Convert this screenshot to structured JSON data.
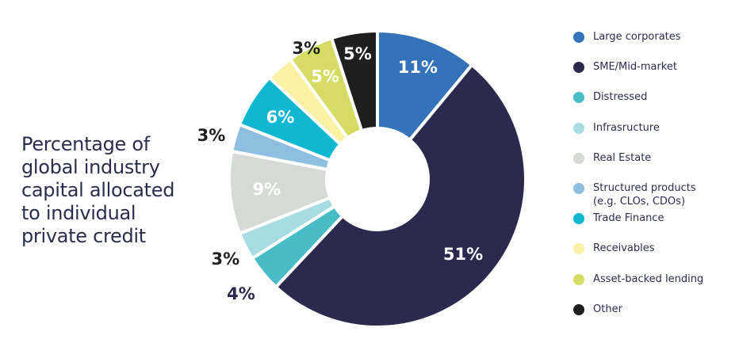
{
  "title": "Percentage of\nglobal industry\ncapital allocated\nto individual\nprivate credit",
  "chart_data": {
    "type": "pie",
    "variant": "donut",
    "categories": [
      "Large corporates",
      "SME/Mid-market",
      "Distressed",
      "Infrasructure",
      "Real Estate",
      "Structured products\n(e.g. CLOs, CDOs)",
      "Trade Finance",
      "Receivables",
      "Asset-backed lending",
      "Other"
    ],
    "values": [
      11,
      51,
      4,
      3,
      9,
      3,
      6,
      3,
      5,
      5
    ],
    "value_labels": [
      "11%",
      "51%",
      "4%",
      "3%",
      "9%",
      "3%",
      "6%",
      "3%",
      "5%",
      "5%"
    ],
    "colors": [
      "#3472ba",
      "#2b2a4e",
      "#47bcc6",
      "#a7dde2",
      "#d5dad4",
      "#8fbfe0",
      "#10b7d1",
      "#fbf1a2",
      "#d4dc63",
      "#1f1f1f"
    ],
    "label_colors": [
      "#ffffff",
      "#ffffff",
      "#2b2a4e",
      "#1f1f1f",
      "#ffffff",
      "#1f1f1f",
      "#ffffff",
      "#1f1f1f",
      "#ffffff",
      "#ffffff"
    ],
    "legend_position": "right"
  }
}
